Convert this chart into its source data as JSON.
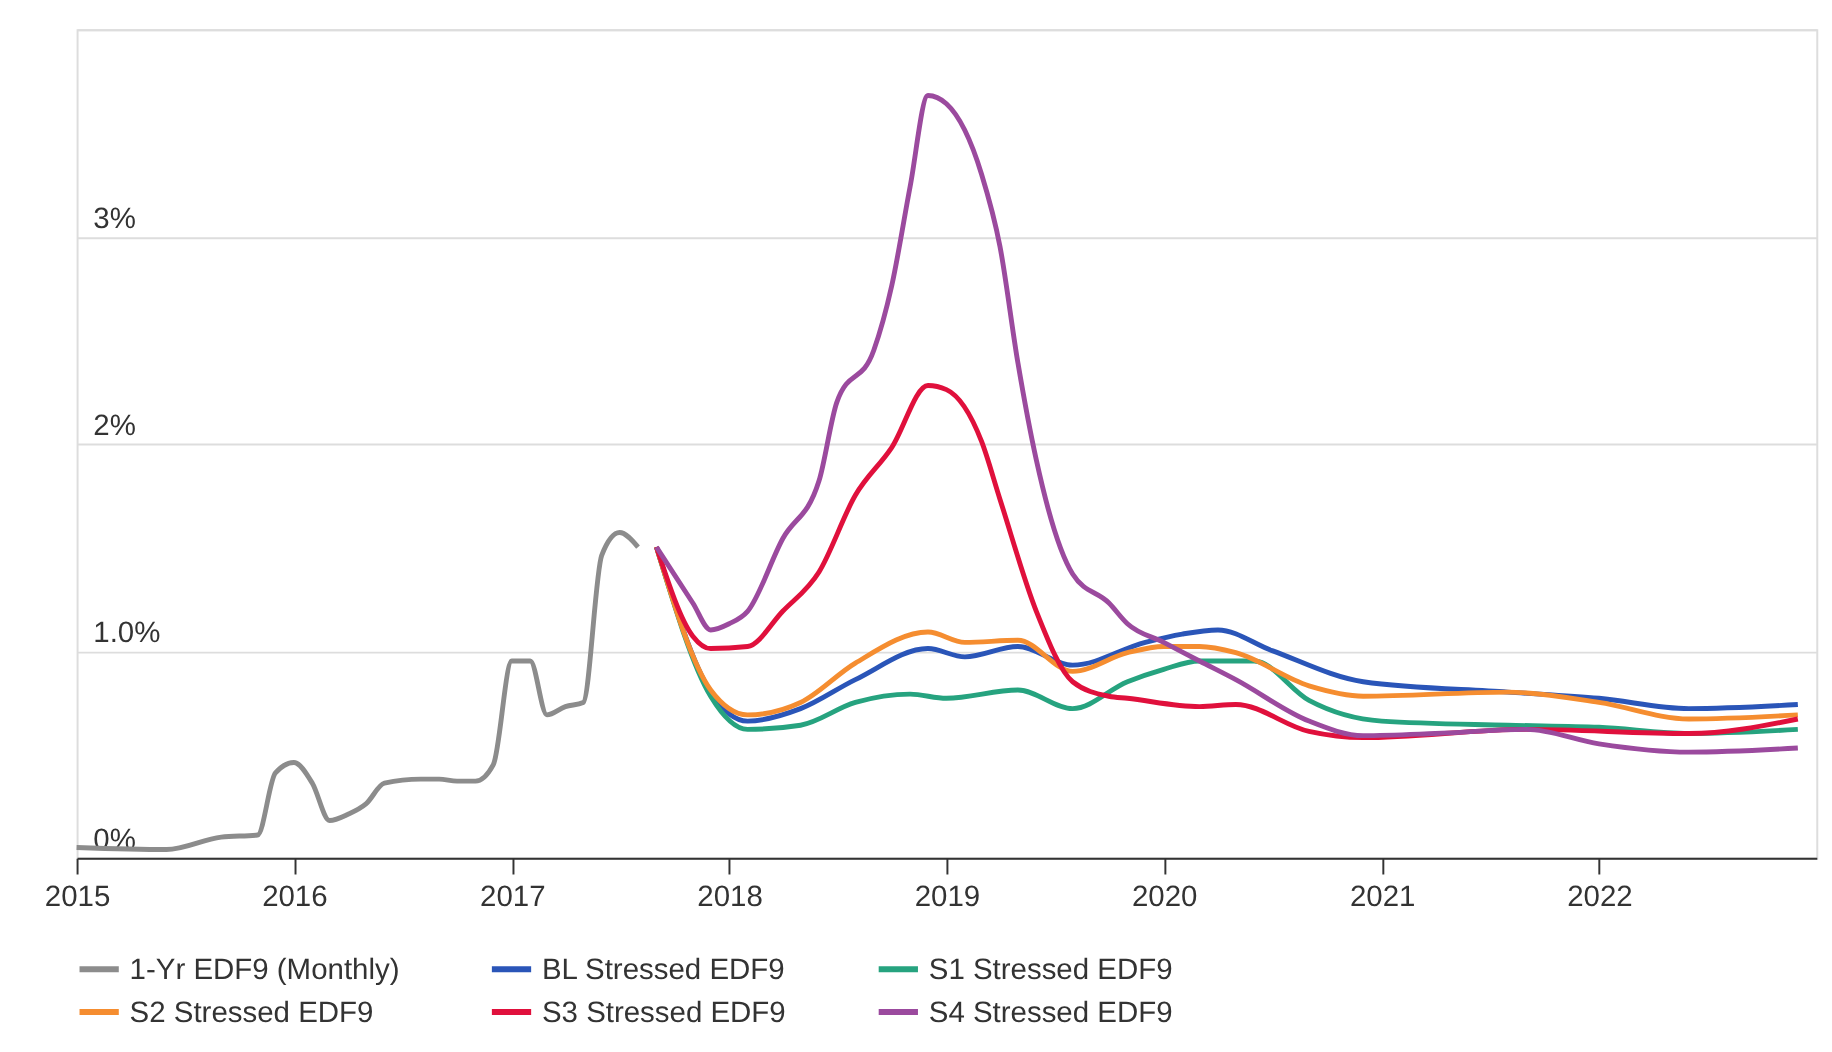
{
  "chart_data": {
    "type": "line",
    "xlim": [
      "2015-01-01",
      "2023-01-01"
    ],
    "xticks": [
      "2015",
      "2016",
      "2017",
      "2018",
      "2019",
      "2020",
      "2021",
      "2022"
    ],
    "ylim": [
      0,
      4
    ],
    "yticks": [
      {
        "value": 0,
        "label": "0%"
      },
      {
        "value": 1,
        "label": "1.0%"
      },
      {
        "value": 2,
        "label": "2%"
      },
      {
        "value": 3,
        "label": "3%"
      },
      {
        "value": 4,
        "label": null
      }
    ],
    "grid": "y",
    "legend": "bottom",
    "line_style": "solid",
    "marker": "none",
    "series": [
      {
        "name": "1-Yr EDF9 (Monthly)",
        "color": "#8c8c8c",
        "x": [
          "2015-01",
          "2015-06",
          "2015-09",
          "2015-11",
          "2015-12",
          "2016-01",
          "2016-02",
          "2016-03",
          "2016-04",
          "2016-05",
          "2016-06",
          "2016-08",
          "2016-09",
          "2016-10",
          "2016-11",
          "2016-12",
          "2017-01",
          "2017-02",
          "2017-03",
          "2017-04",
          "2017-05",
          "2017-06",
          "2017-07",
          "2017-08"
        ],
        "values": [
          0.05,
          0.04,
          0.1,
          0.11,
          0.41,
          0.46,
          0.36,
          0.18,
          0.21,
          0.26,
          0.36,
          0.38,
          0.38,
          0.37,
          0.37,
          0.45,
          0.95,
          0.95,
          0.69,
          0.73,
          0.75,
          1.46,
          1.57,
          1.5
        ]
      },
      {
        "name": "BL Stressed EDF9",
        "color": "#2a55b8",
        "x": [
          "2017-09",
          "2017-12",
          "2018-02",
          "2018-05",
          "2018-08",
          "2018-12",
          "2019-02",
          "2019-05",
          "2019-08",
          "2019-12",
          "2020-02",
          "2020-04",
          "2020-07",
          "2020-12",
          "2021-08",
          "2022-01",
          "2022-06",
          "2022-12"
        ],
        "values": [
          1.5,
          0.8,
          0.66,
          0.72,
          0.86,
          1.01,
          0.97,
          1.02,
          0.93,
          1.04,
          1.08,
          1.1,
          1.0,
          0.85,
          0.8,
          0.77,
          0.72,
          0.74
        ]
      },
      {
        "name": "S1 Stressed EDF9",
        "color": "#26a37f",
        "x": [
          "2017-09",
          "2017-12",
          "2018-02",
          "2018-05",
          "2018-08",
          "2018-11",
          "2019-01",
          "2019-05",
          "2019-08",
          "2019-11",
          "2020-01",
          "2020-03",
          "2020-06",
          "2020-09",
          "2021-01",
          "2021-08",
          "2022-01",
          "2022-06",
          "2022-12"
        ],
        "values": [
          1.5,
          0.78,
          0.62,
          0.64,
          0.75,
          0.79,
          0.77,
          0.81,
          0.72,
          0.85,
          0.91,
          0.95,
          0.95,
          0.76,
          0.66,
          0.64,
          0.63,
          0.6,
          0.62
        ]
      },
      {
        "name": "S2 Stressed EDF9",
        "color": "#f58d30",
        "x": [
          "2017-09",
          "2017-12",
          "2018-02",
          "2018-05",
          "2018-08",
          "2018-12",
          "2019-02",
          "2019-05",
          "2019-08",
          "2019-11",
          "2020-01",
          "2020-03",
          "2020-05",
          "2020-09",
          "2020-12",
          "2021-08",
          "2022-01",
          "2022-06",
          "2022-12"
        ],
        "values": [
          1.5,
          0.81,
          0.69,
          0.75,
          0.94,
          1.09,
          1.04,
          1.05,
          0.9,
          0.99,
          1.02,
          1.02,
          0.99,
          0.83,
          0.78,
          0.8,
          0.75,
          0.67,
          0.69
        ]
      },
      {
        "name": "S3 Stressed EDF9",
        "color": "#e0103c",
        "x": [
          "2017-09",
          "2017-11",
          "2017-12",
          "2018-02",
          "2018-04",
          "2018-06",
          "2018-08",
          "2018-10",
          "2018-12",
          "2019-01",
          "2019-03",
          "2019-04",
          "2019-06",
          "2019-08",
          "2019-10",
          "2019-11",
          "2020-03",
          "2020-05",
          "2020-09",
          "2020-12",
          "2021-09",
          "2022-06",
          "2022-12"
        ],
        "values": [
          1.5,
          1.07,
          1.01,
          1.02,
          1.19,
          1.38,
          1.75,
          1.98,
          2.28,
          2.26,
          2.01,
          1.73,
          1.19,
          0.85,
          0.78,
          0.77,
          0.73,
          0.74,
          0.61,
          0.58,
          0.62,
          0.6,
          0.67
        ]
      },
      {
        "name": "S4 Stressed EDF9",
        "color": "#9b4a9e",
        "x": [
          "2017-09",
          "2017-11",
          "2017-12",
          "2018-01",
          "2018-02",
          "2018-04",
          "2018-06",
          "2018-07",
          "2018-09",
          "2018-10",
          "2018-11",
          "2018-12",
          "2019-01",
          "2019-03",
          "2019-04",
          "2019-05",
          "2019-06",
          "2019-08",
          "2019-10",
          "2019-11",
          "2020-01",
          "2020-03",
          "2020-05",
          "2020-09",
          "2020-12",
          "2021-04",
          "2021-09",
          "2022-01",
          "2022-06",
          "2022-12"
        ],
        "values": [
          1.5,
          1.23,
          1.1,
          1.13,
          1.19,
          1.54,
          1.82,
          2.2,
          2.45,
          2.76,
          3.24,
          3.68,
          3.64,
          3.3,
          2.95,
          2.39,
          1.92,
          1.37,
          1.23,
          1.13,
          1.04,
          0.95,
          0.86,
          0.66,
          0.59,
          0.6,
          0.62,
          0.55,
          0.51,
          0.53
        ]
      }
    ]
  }
}
